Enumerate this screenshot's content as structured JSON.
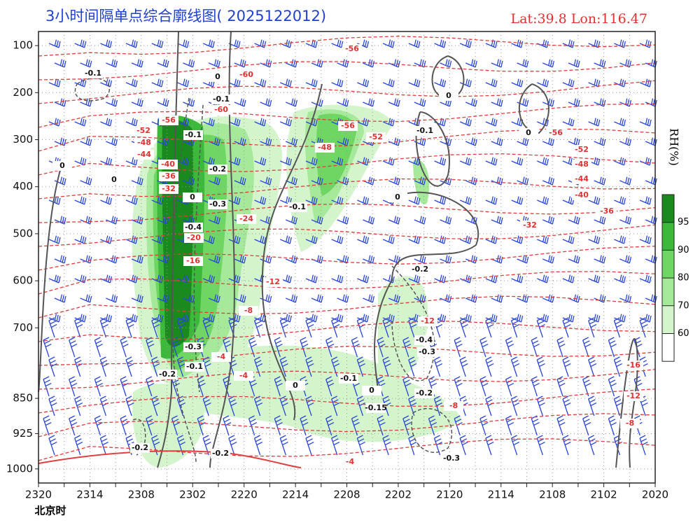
{
  "chart_data": {
    "type": "cross-section",
    "title": "3小时间隔单点综合廓线图( 2025122012)",
    "location": "Lat:39.8  Lon:116.47",
    "x_label": "北京时",
    "categories": [
      "2320",
      null,
      "2314",
      null,
      "2308",
      null,
      "2302",
      null,
      "2220",
      null,
      "2214",
      null,
      "2208",
      null,
      "2202",
      null,
      "2120",
      null,
      "2114",
      null,
      "2108",
      null,
      "2102",
      null,
      "2020"
    ],
    "ylim": [
      1030,
      70
    ],
    "yticks": [
      100,
      200,
      300,
      400,
      500,
      600,
      700,
      850,
      925,
      1000
    ],
    "grid": true,
    "colorbar": {
      "label": "RH(%)",
      "ticks": [
        60,
        70,
        80,
        90,
        95
      ],
      "colors": [
        "#ffffff",
        "#d4f5cc",
        "#a6e99a",
        "#6fd563",
        "#3cb83a",
        "#1a8a1e"
      ]
    },
    "temperature_labels": [
      -60,
      -56,
      -52,
      -48,
      -44,
      -40,
      -36,
      -32,
      -24,
      -20,
      -16,
      -12,
      -8,
      -4,
      -4,
      -56,
      -52,
      -48,
      -56,
      -56,
      -52,
      -48,
      -44,
      -40,
      -36,
      -32,
      -12,
      -8,
      -4,
      -16,
      -12,
      -8,
      -60
    ],
    "omega_labels": [
      -0.1,
      0,
      -0.1,
      -0.1,
      -0.2,
      0,
      -0.3,
      -0.4,
      -0.3,
      -0.1,
      -0.2,
      -0.1,
      0,
      0,
      -0.1,
      -0.2,
      -0.4,
      -0.3,
      -0.1,
      0,
      -0.15,
      -0.2,
      -0.3,
      -0.2,
      -0.2,
      0,
      0,
      0,
      0
    ]
  }
}
